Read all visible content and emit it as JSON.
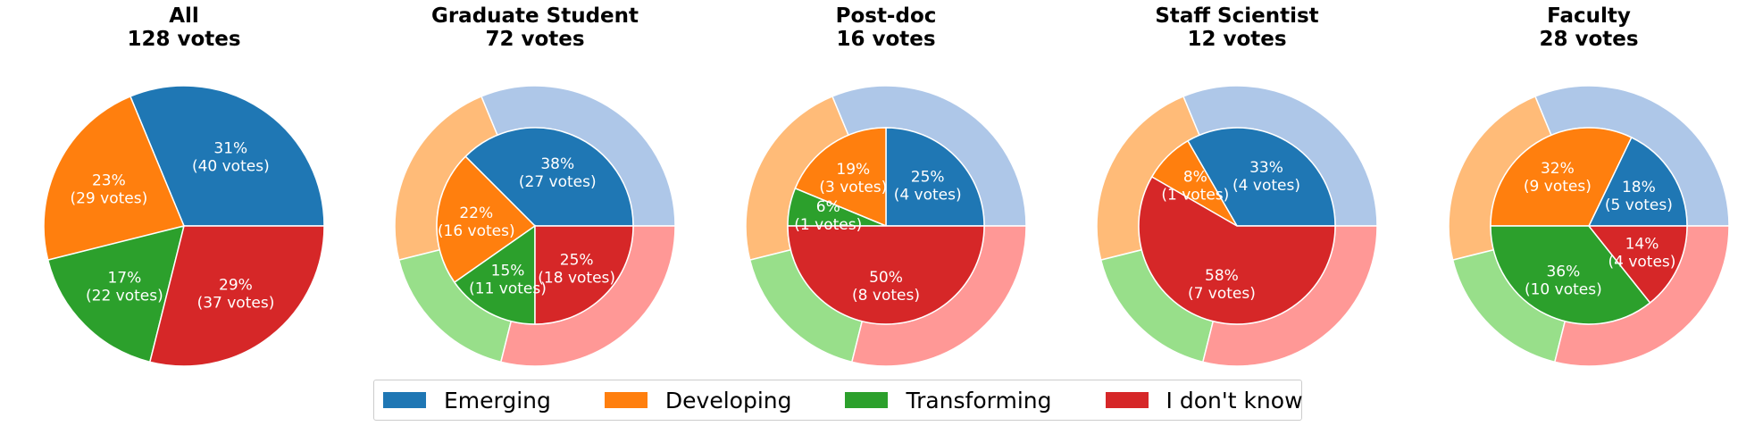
{
  "colors": {
    "inner": [
      "#1f77b4",
      "#ff7f0e",
      "#2ca02c",
      "#d62728"
    ],
    "outer": [
      "#aec7e8",
      "#ffbb78",
      "#98df8a",
      "#ff9896"
    ]
  },
  "legend": {
    "placement": "bottom-center",
    "items": [
      {
        "label": "Emerging",
        "color": "#1f77b4"
      },
      {
        "label": "Developing",
        "color": "#ff7f0e"
      },
      {
        "label": "Transforming",
        "color": "#2ca02c"
      },
      {
        "label": "I don't know",
        "color": "#d62728"
      }
    ]
  },
  "chart_data": [
    {
      "type": "pie",
      "title": "All",
      "subtitle": "128 votes",
      "categories": [
        "Emerging",
        "Developing",
        "Transforming",
        "I don't know"
      ],
      "values": [
        40,
        29,
        22,
        37
      ],
      "labels": [
        [
          "31%",
          "(40 votes)"
        ],
        [
          "23%",
          "(29 votes)"
        ],
        [
          "17%",
          "(22 votes)"
        ],
        [
          "29%",
          "(37 votes)"
        ]
      ]
    },
    {
      "type": "pie",
      "title": "Graduate Student",
      "subtitle": "72 votes",
      "categories": [
        "Emerging",
        "Developing",
        "Transforming",
        "I don't know"
      ],
      "values": [
        27,
        16,
        11,
        18
      ],
      "overall_values": [
        40,
        29,
        22,
        37
      ],
      "labels": [
        [
          "38%",
          "(27 votes)"
        ],
        [
          "22%",
          "(16 votes)"
        ],
        [
          "15%",
          "(11 votes)"
        ],
        [
          "25%",
          "(18 votes)"
        ]
      ]
    },
    {
      "type": "pie",
      "title": "Post-doc",
      "subtitle": "16 votes",
      "categories": [
        "Emerging",
        "Developing",
        "Transforming",
        "I don't know"
      ],
      "values": [
        4,
        3,
        1,
        8
      ],
      "overall_values": [
        40,
        29,
        22,
        37
      ],
      "labels": [
        [
          "25%",
          "(4 votes)"
        ],
        [
          "19%",
          "(3 votes)"
        ],
        [
          "6%",
          "(1 votes)"
        ],
        [
          "50%",
          "(8 votes)"
        ]
      ]
    },
    {
      "type": "pie",
      "title": "Staff Scientist",
      "subtitle": "12 votes",
      "categories": [
        "Emerging",
        "Developing",
        "Transforming",
        "I don't know"
      ],
      "values": [
        4,
        1,
        0,
        7
      ],
      "overall_values": [
        40,
        29,
        22,
        37
      ],
      "labels": [
        [
          "33%",
          "(4 votes)"
        ],
        [
          "8%",
          "(1 votes)"
        ],
        [
          "",
          ""
        ],
        [
          "58%",
          "(7 votes)"
        ]
      ]
    },
    {
      "type": "pie",
      "title": "Faculty",
      "subtitle": "28 votes",
      "categories": [
        "Emerging",
        "Developing",
        "Transforming",
        "I don't know"
      ],
      "values": [
        5,
        9,
        10,
        4
      ],
      "overall_values": [
        40,
        29,
        22,
        37
      ],
      "labels": [
        [
          "18%",
          "(5 votes)"
        ],
        [
          "32%",
          "(9 votes)"
        ],
        [
          "36%",
          "(10 votes)"
        ],
        [
          "14%",
          "(4 votes)"
        ]
      ]
    }
  ]
}
